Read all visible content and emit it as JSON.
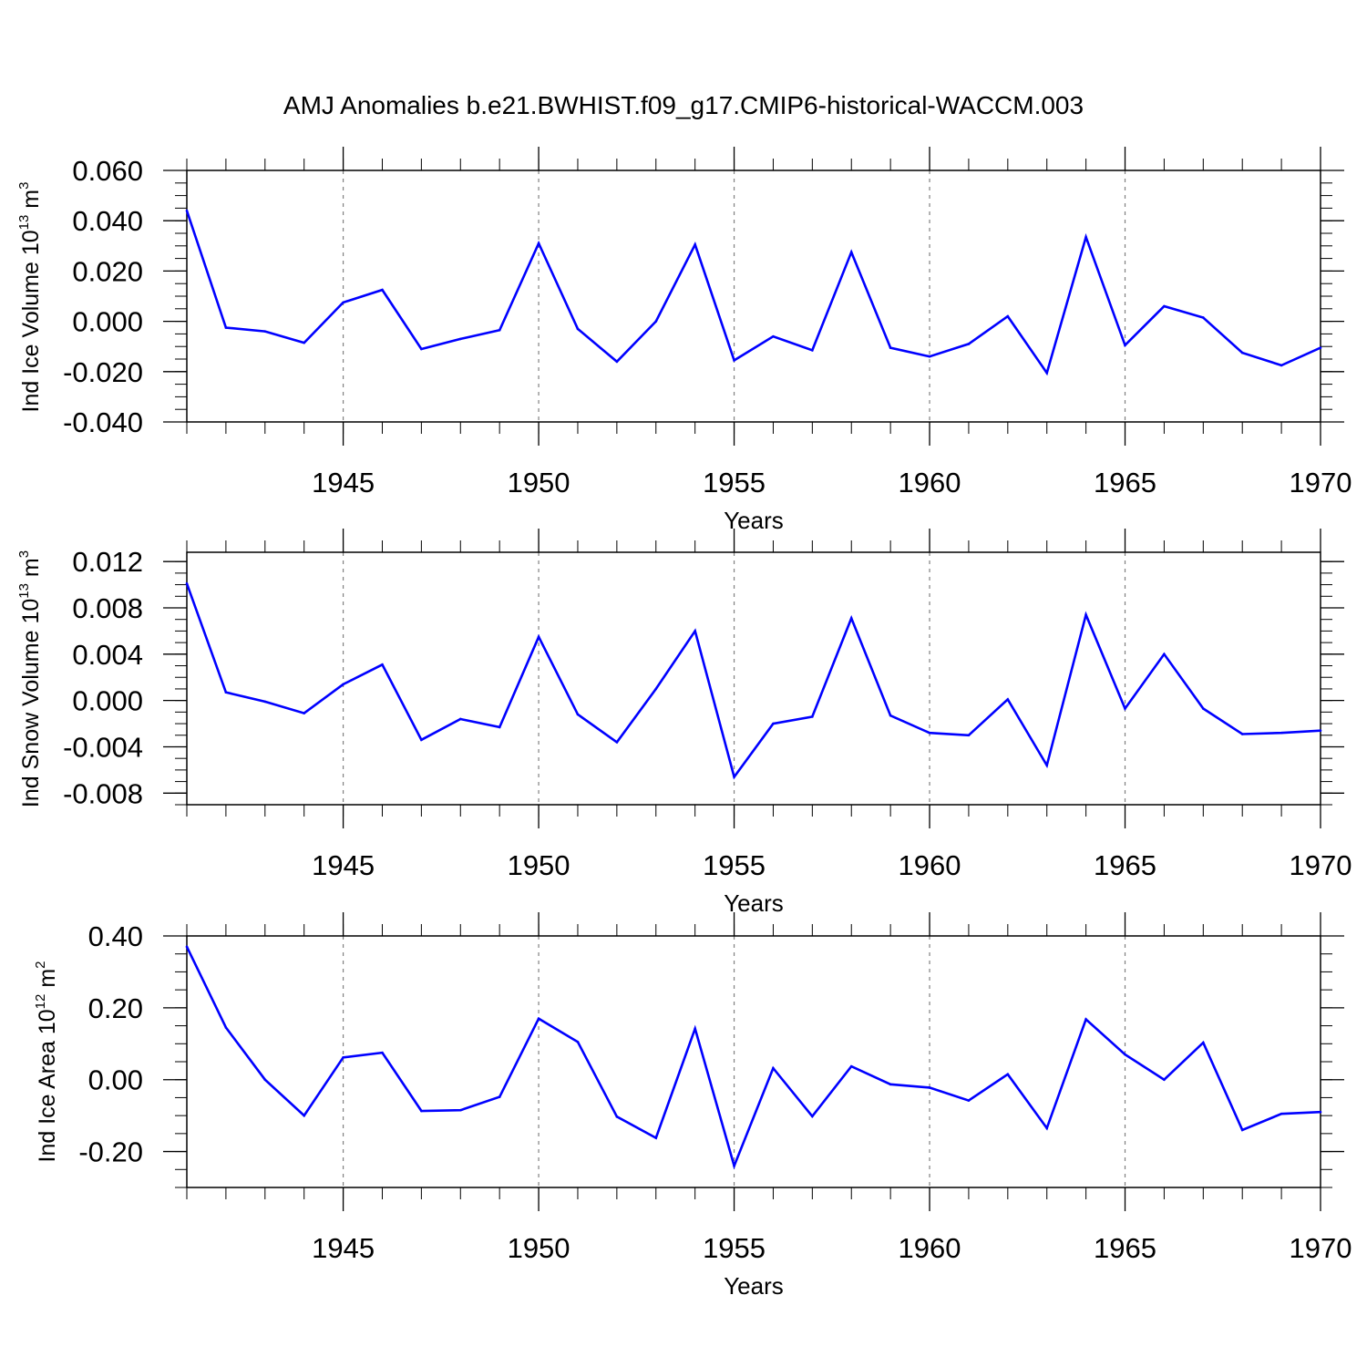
{
  "title": "AMJ Anomalies b.e21.BWHIST.f09_g17.CMIP6-historical-WACCM.003",
  "colors": {
    "line": "#0000ff",
    "axis": "#000000",
    "grid": "#808080",
    "background": "#ffffff"
  },
  "chart_data": [
    {
      "type": "line",
      "xlabel": "Years",
      "ylabel": {
        "prefix": "Ind Ice Volume 10",
        "exp": "13",
        "unit": " m",
        "unit_exp": "3"
      },
      "xlim": [
        1941,
        1970
      ],
      "ylim": [
        -0.04,
        0.06
      ],
      "yticks": [
        -0.04,
        -0.02,
        0.0,
        0.02,
        0.04,
        0.06
      ],
      "ytick_labels": [
        "-0.040",
        "-0.020",
        "0.000",
        "0.020",
        "0.040",
        "0.060"
      ],
      "yminor_step": 0.005,
      "xticks": [
        1945,
        1950,
        1955,
        1960,
        1965,
        1970
      ],
      "xtick_labels": [
        "1945",
        "1950",
        "1955",
        "1960",
        "1965",
        "1970"
      ],
      "grid": "vertical dashed at major x ticks",
      "x": [
        1941,
        1942,
        1943,
        1944,
        1945,
        1946,
        1947,
        1948,
        1949,
        1950,
        1951,
        1952,
        1953,
        1954,
        1955,
        1956,
        1957,
        1958,
        1959,
        1960,
        1961,
        1962,
        1963,
        1964,
        1965,
        1966,
        1967,
        1968,
        1969,
        1970
      ],
      "series": [
        {
          "values": [
            0.044,
            -0.0025,
            -0.004,
            -0.0085,
            0.0075,
            0.0125,
            -0.011,
            -0.007,
            -0.0035,
            0.031,
            -0.003,
            -0.016,
            0.0,
            0.0305,
            -0.0155,
            -0.006,
            -0.0115,
            0.0275,
            -0.0105,
            -0.014,
            -0.009,
            0.002,
            -0.0205,
            0.0335,
            -0.0095,
            0.006,
            0.0015,
            -0.0125,
            -0.0175,
            -0.0105
          ]
        }
      ]
    },
    {
      "type": "line",
      "xlabel": "Years",
      "ylabel": {
        "prefix": "Ind Snow Volume 10",
        "exp": "13",
        "unit": " m",
        "unit_exp": "3"
      },
      "xlim": [
        1941,
        1970
      ],
      "ylim": [
        -0.009,
        0.0128
      ],
      "yticks": [
        -0.008,
        -0.004,
        0.0,
        0.004,
        0.008,
        0.012
      ],
      "ytick_labels": [
        "-0.008",
        "-0.004",
        "0.000",
        "0.004",
        "0.008",
        "0.012"
      ],
      "yminor_step": 0.001,
      "xticks": [
        1945,
        1950,
        1955,
        1960,
        1965,
        1970
      ],
      "xtick_labels": [
        "1945",
        "1950",
        "1955",
        "1960",
        "1965",
        "1970"
      ],
      "grid": "vertical dashed at major x ticks",
      "x": [
        1941,
        1942,
        1943,
        1944,
        1945,
        1946,
        1947,
        1948,
        1949,
        1950,
        1951,
        1952,
        1953,
        1954,
        1955,
        1956,
        1957,
        1958,
        1959,
        1960,
        1961,
        1962,
        1963,
        1964,
        1965,
        1966,
        1967,
        1968,
        1969,
        1970
      ],
      "series": [
        {
          "values": [
            0.0101,
            0.0007,
            -0.0001,
            -0.0011,
            0.0014,
            0.0031,
            -0.0034,
            -0.0016,
            -0.0023,
            0.0055,
            -0.0012,
            -0.0036,
            0.001,
            0.006,
            -0.0066,
            -0.002,
            -0.0014,
            0.0071,
            -0.0013,
            -0.0028,
            -0.003,
            0.0001,
            -0.0056,
            0.0074,
            -0.0007,
            0.004,
            -0.0007,
            -0.0029,
            -0.0028,
            -0.0026
          ]
        }
      ]
    },
    {
      "type": "line",
      "xlabel": "Years",
      "ylabel": {
        "prefix": "Ind Ice Area 10",
        "exp": "12",
        "unit": " m",
        "unit_exp": "2"
      },
      "xlim": [
        1941,
        1970
      ],
      "ylim": [
        -0.3,
        0.4
      ],
      "yticks": [
        -0.2,
        0.0,
        0.2,
        0.4
      ],
      "ytick_labels": [
        "-0.20",
        "0.00",
        "0.20",
        "0.40"
      ],
      "yminor_step": 0.05,
      "xticks": [
        1945,
        1950,
        1955,
        1960,
        1965,
        1970
      ],
      "xtick_labels": [
        "1945",
        "1950",
        "1955",
        "1960",
        "1965",
        "1970"
      ],
      "grid": "vertical dashed at major x ticks",
      "x": [
        1941,
        1942,
        1943,
        1944,
        1945,
        1946,
        1947,
        1948,
        1949,
        1950,
        1951,
        1952,
        1953,
        1954,
        1955,
        1956,
        1957,
        1958,
        1959,
        1960,
        1961,
        1962,
        1963,
        1964,
        1965,
        1966,
        1967,
        1968,
        1969,
        1970
      ],
      "series": [
        {
          "values": [
            0.37,
            0.145,
            0.0,
            -0.1,
            0.062,
            0.075,
            -0.087,
            -0.085,
            -0.048,
            0.17,
            0.105,
            -0.103,
            -0.162,
            0.142,
            -0.24,
            0.032,
            -0.102,
            0.037,
            -0.013,
            -0.022,
            -0.058,
            0.015,
            -0.135,
            0.168,
            0.07,
            0.0,
            0.103,
            -0.14,
            -0.095,
            -0.09
          ]
        }
      ]
    }
  ]
}
